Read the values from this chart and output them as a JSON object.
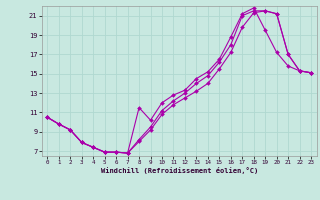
{
  "xlabel": "Windchill (Refroidissement éolien,°C)",
  "background_color": "#c8e8e0",
  "grid_color": "#b0d8d0",
  "line_color": "#aa00aa",
  "xlim": [
    -0.5,
    23.5
  ],
  "ylim": [
    6.5,
    22
  ],
  "yticks": [
    7,
    9,
    11,
    13,
    15,
    17,
    19,
    21
  ],
  "xticks": [
    0,
    1,
    2,
    3,
    4,
    5,
    6,
    7,
    8,
    9,
    10,
    11,
    12,
    13,
    14,
    15,
    16,
    17,
    18,
    19,
    20,
    21,
    22,
    23
  ],
  "line1_x": [
    0,
    1,
    2,
    3,
    4,
    5,
    6,
    7,
    8,
    9,
    10,
    11,
    12,
    13,
    14,
    15,
    16,
    17,
    18,
    19,
    20,
    21,
    22,
    23
  ],
  "line1_y": [
    10.5,
    9.8,
    9.2,
    7.9,
    7.4,
    6.9,
    6.9,
    6.8,
    11.5,
    10.2,
    12.0,
    12.8,
    13.3,
    14.5,
    15.2,
    16.5,
    18.8,
    21.2,
    21.8,
    19.5,
    17.2,
    15.8,
    15.3,
    15.1
  ],
  "line2_x": [
    0,
    1,
    2,
    3,
    4,
    5,
    6,
    7,
    8,
    9,
    10,
    11,
    12,
    13,
    14,
    15,
    16,
    17,
    18,
    19,
    20,
    21,
    22,
    23
  ],
  "line2_y": [
    10.5,
    9.8,
    9.2,
    7.9,
    7.4,
    6.9,
    6.9,
    6.8,
    8.2,
    9.5,
    11.2,
    12.2,
    13.0,
    14.0,
    14.8,
    16.2,
    18.0,
    21.0,
    21.5,
    21.5,
    21.2,
    17.0,
    15.3,
    15.1
  ],
  "line3_x": [
    0,
    1,
    2,
    3,
    4,
    5,
    6,
    7,
    8,
    9,
    10,
    11,
    12,
    13,
    14,
    15,
    16,
    17,
    18,
    19,
    20,
    21,
    22,
    23
  ],
  "line3_y": [
    10.5,
    9.8,
    9.2,
    7.9,
    7.4,
    6.9,
    6.9,
    6.8,
    8.0,
    9.2,
    10.8,
    11.8,
    12.5,
    13.2,
    14.0,
    15.5,
    17.2,
    19.8,
    21.3,
    21.5,
    21.2,
    17.0,
    15.3,
    15.1
  ]
}
